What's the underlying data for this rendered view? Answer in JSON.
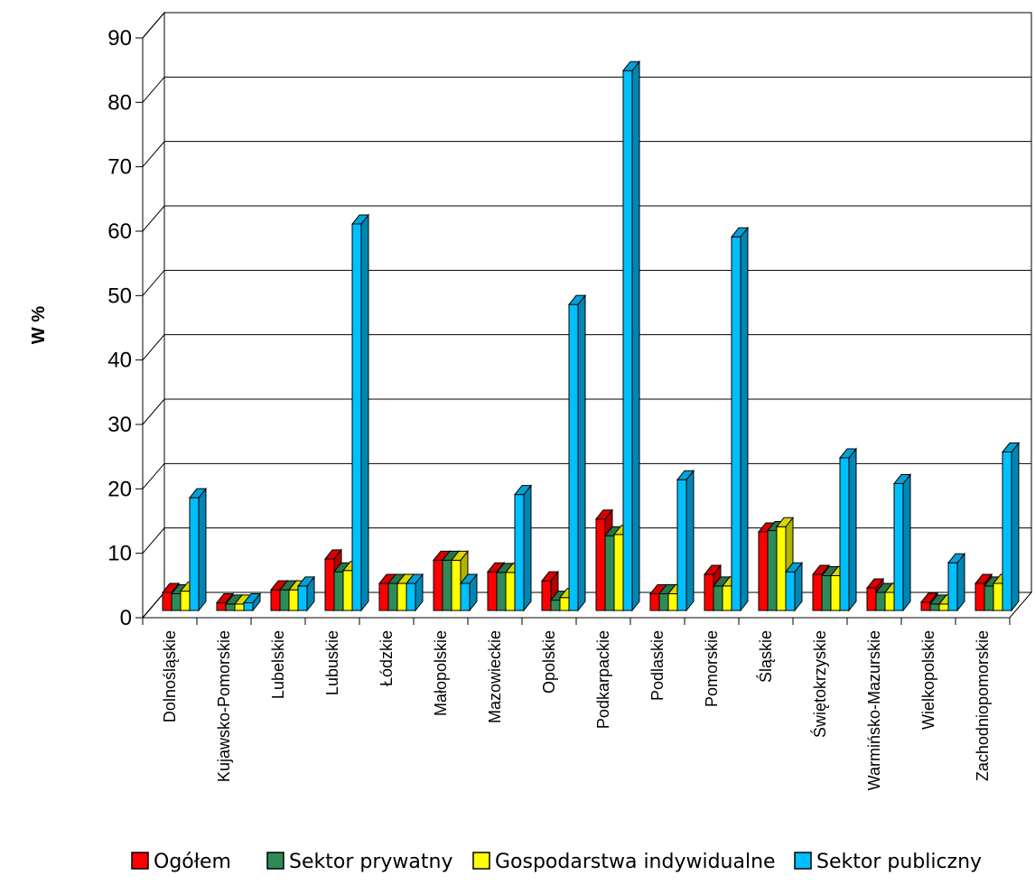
{
  "chart_data": {
    "type": "bar",
    "title": "",
    "xlabel": "",
    "ylabel": "W %",
    "ylim": [
      0,
      90
    ],
    "yticks": [
      "0",
      "10",
      "20",
      "30",
      "40",
      "50",
      "60",
      "70",
      "80",
      "90"
    ],
    "grid": true,
    "legend_position": "bottom",
    "categories": [
      "Dolnośląskie",
      "Kujawsko-Pomorskie",
      "Lubelskie",
      "Lubuskie",
      "Łódzkie",
      "Małopolskie",
      "Mazowieckie",
      "Opolskie",
      "Podkarpackie",
      "Podlaskie",
      "Pomorskie",
      "Śląskie",
      "Świętokrzyskie",
      "Warmińsko-Mazurskie",
      "Wielkopolskie",
      "Zachodniopomorskie"
    ],
    "series": [
      {
        "name": "Ogółem",
        "color": "#ff0000",
        "values": [
          2.8,
          1.2,
          3.2,
          8.0,
          4.2,
          7.8,
          6.0,
          4.6,
          14.2,
          2.6,
          5.6,
          12.2,
          5.6,
          3.5,
          1.3,
          4.2
        ]
      },
      {
        "name": "Sektor prywatny",
        "color": "#2e8b57",
        "values": [
          2.6,
          1.0,
          3.2,
          6.0,
          4.2,
          7.8,
          5.9,
          1.6,
          11.6,
          2.6,
          3.8,
          12.4,
          5.4,
          2.8,
          1.0,
          3.8
        ]
      },
      {
        "name": "Gospodarstwa indywidualne",
        "color": "#ffff00",
        "values": [
          3.0,
          1.0,
          3.2,
          6.2,
          4.2,
          7.8,
          5.9,
          2.0,
          11.8,
          2.6,
          3.8,
          13.0,
          5.4,
          2.8,
          1.0,
          4.2
        ]
      },
      {
        "name": "Sektor publiczny",
        "color": "#00bfff",
        "values": [
          17.5,
          1.2,
          3.8,
          60.0,
          4.2,
          4.2,
          18.0,
          47.5,
          83.8,
          20.3,
          58.0,
          6.0,
          23.7,
          19.7,
          7.4,
          24.6
        ]
      }
    ]
  }
}
